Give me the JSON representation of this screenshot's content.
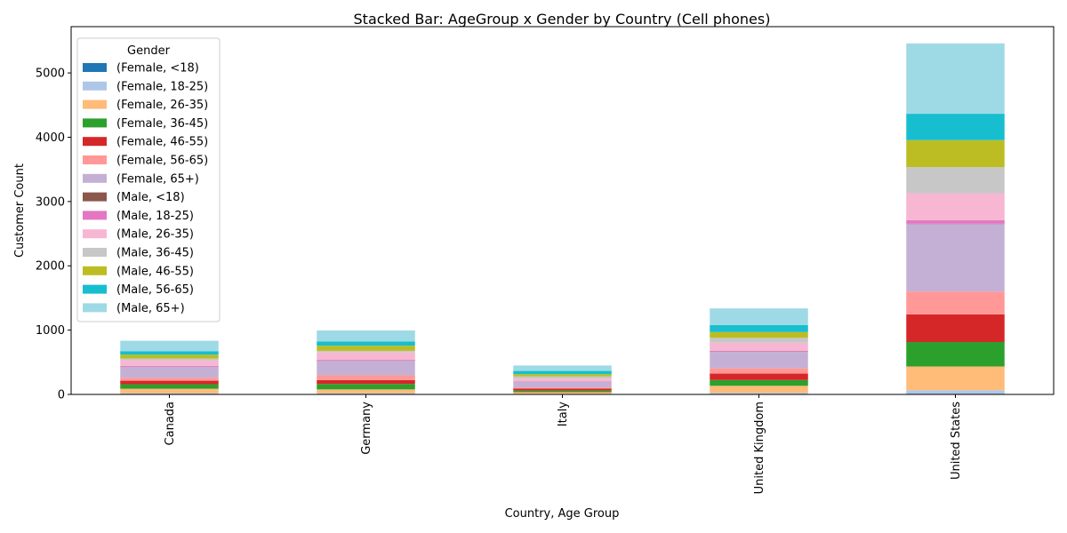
{
  "chart_data": {
    "type": "bar",
    "stacked": true,
    "title": "Stacked Bar: AgeGroup x Gender by Country (Cell phones)",
    "xlabel": "Country, Age Group",
    "ylabel": "Customer Count",
    "ylim": [
      0,
      5720
    ],
    "yticks": [
      0,
      1000,
      2000,
      3000,
      4000,
      5000
    ],
    "grid": false,
    "legend": {
      "title": "Gender",
      "placement": "upper-left"
    },
    "categories": [
      "Canada",
      "Germany",
      "Italy",
      "United Kingdom",
      "United States"
    ],
    "series": [
      {
        "name": "(Female, <18)",
        "color": "#1f77b4",
        "values": [
          3,
          3,
          2,
          4,
          10
        ]
      },
      {
        "name": "(Female, 18-25)",
        "color": "#aec7e8",
        "values": [
          15,
          15,
          8,
          20,
          55
        ]
      },
      {
        "name": "(Female, 26-35)",
        "color": "#ffbb78",
        "values": [
          70,
          60,
          25,
          110,
          370
        ]
      },
      {
        "name": "(Female, 36-45)",
        "color": "#2ca02c",
        "values": [
          70,
          85,
          25,
          90,
          380
        ]
      },
      {
        "name": "(Female, 46-55)",
        "color": "#d62728",
        "values": [
          55,
          60,
          30,
          100,
          430
        ]
      },
      {
        "name": "(Female, 56-65)",
        "color": "#ff9896",
        "values": [
          45,
          75,
          15,
          85,
          355
        ]
      },
      {
        "name": "(Female, 65+)",
        "color": "#c5b0d5",
        "values": [
          170,
          225,
          90,
          255,
          1050
        ]
      },
      {
        "name": "(Male, <18)",
        "color": "#8c564b",
        "values": [
          3,
          3,
          2,
          4,
          5
        ]
      },
      {
        "name": "(Male, 18-25)",
        "color": "#e377c2",
        "values": [
          12,
          12,
          8,
          12,
          55
        ]
      },
      {
        "name": "(Male, 26-35)",
        "color": "#f7b6d2",
        "values": [
          85,
          115,
          40,
          125,
          420
        ]
      },
      {
        "name": "(Male, 36-45)",
        "color": "#c7c7c7",
        "values": [
          30,
          25,
          35,
          75,
          405
        ]
      },
      {
        "name": "(Male, 46-55)",
        "color": "#bcbd22",
        "values": [
          60,
          80,
          35,
          90,
          420
        ]
      },
      {
        "name": "(Male, 56-65)",
        "color": "#17becf",
        "values": [
          55,
          65,
          50,
          110,
          410
        ]
      },
      {
        "name": "(Male, 65+)",
        "color": "#9edae5",
        "values": [
          162,
          172,
          85,
          258,
          1095
        ]
      }
    ]
  }
}
